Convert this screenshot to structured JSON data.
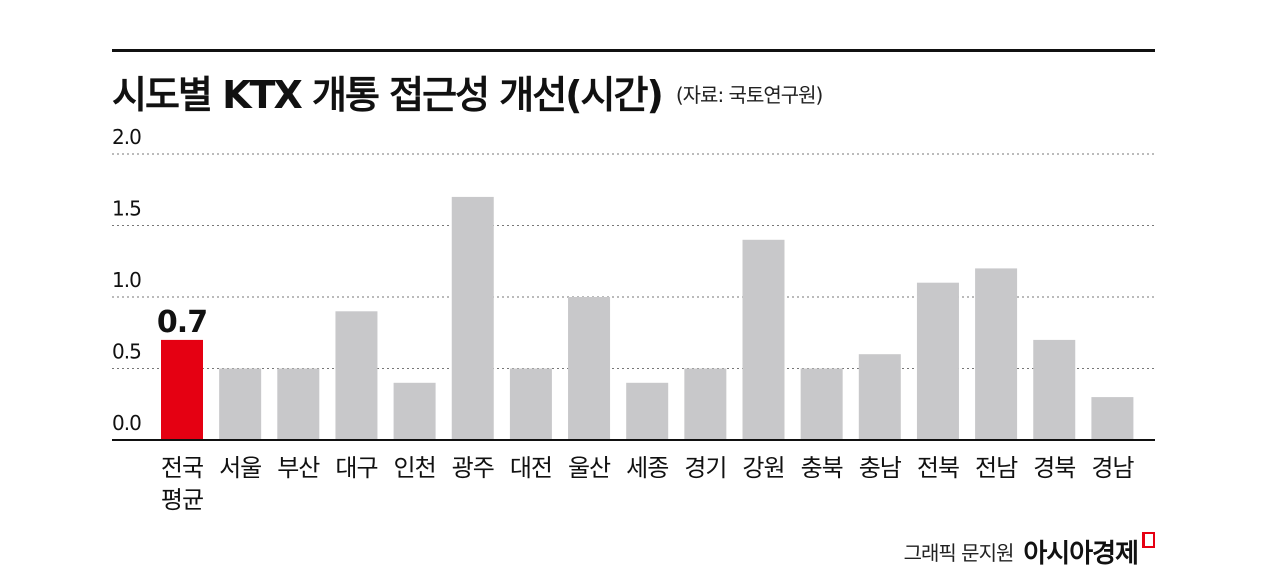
{
  "header": {
    "title": "시도별 KTX 개통 접근성 개선(시간)",
    "source": "(자료: 국토연구원)"
  },
  "footer": {
    "credit": "그래픽 문지원",
    "brand": "아시아경제"
  },
  "colors": {
    "highlight": "#e50012",
    "bar": "#c8c8ca",
    "grid": "#777777",
    "axis": "#111111"
  },
  "chart_data": {
    "type": "bar",
    "categories": [
      [
        "전국",
        "평균"
      ],
      [
        "서울"
      ],
      [
        "부산"
      ],
      [
        "대구"
      ],
      [
        "인천"
      ],
      [
        "광주"
      ],
      [
        "대전"
      ],
      [
        "울산"
      ],
      [
        "세종"
      ],
      [
        "경기"
      ],
      [
        "강원"
      ],
      [
        "충북"
      ],
      [
        "충남"
      ],
      [
        "전북"
      ],
      [
        "전남"
      ],
      [
        "경북"
      ],
      [
        "경남"
      ]
    ],
    "values": [
      0.7,
      0.5,
      0.5,
      0.9,
      0.4,
      1.7,
      0.5,
      1.0,
      0.4,
      0.5,
      1.4,
      0.5,
      0.6,
      1.1,
      1.2,
      0.7,
      0.3
    ],
    "highlight_index": 0,
    "highlight_label": "0.7",
    "yticks": [
      "0.0",
      "0.5",
      "1.0",
      "1.5",
      "2.0"
    ],
    "ylim": [
      0,
      2.0
    ],
    "grid": true,
    "legend": false
  }
}
